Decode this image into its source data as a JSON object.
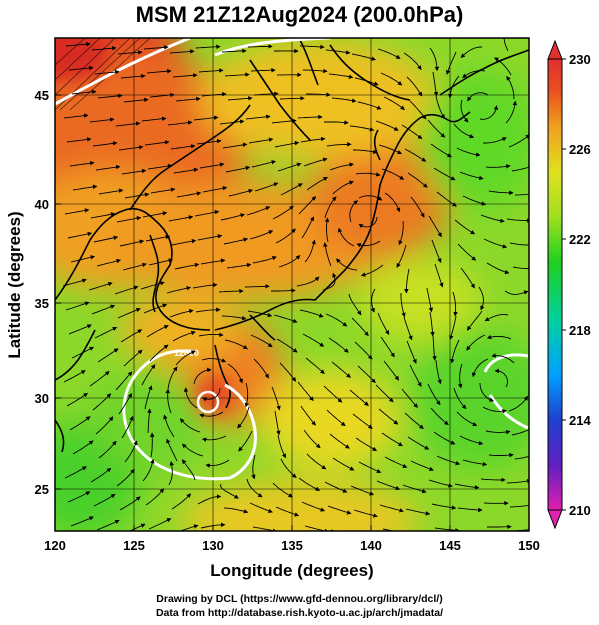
{
  "figure": {
    "title": "MSM 21Z12Aug2024 (200.0hPa)",
    "xlabel": "Longitude (degrees)",
    "ylabel": "Latitude  (degrees)",
    "x_ticks": [
      "120",
      "125",
      "130",
      "135",
      "140",
      "145",
      "150"
    ],
    "y_ticks": [
      "25",
      "30",
      "35",
      "40",
      "45"
    ],
    "colorbar_ticks": [
      "230",
      "226",
      "222",
      "218",
      "214",
      "210"
    ],
    "credit_line1": "Drawing by DCL (https://www.gfd-dennou.org/library/dcl/)",
    "credit_line2": "Data from http://database.rish.kyoto-u.ac.jp/arch/jmadata/",
    "contour_label": "12600"
  },
  "chart_data": {
    "type": "heatmap",
    "variable": "temperature-like field with wind streamlines at 200.0hPa",
    "xlim": [
      120,
      150
    ],
    "ylim": [
      22.5,
      47.5
    ],
    "colorbar_range": [
      210,
      230
    ],
    "colormap": [
      "#e020b0",
      "#2020c0",
      "#00a0ff",
      "#00d0a0",
      "#20d020",
      "#a0e020",
      "#e0e020",
      "#f0a020",
      "#e85020",
      "#e03030"
    ],
    "warm_regions": [
      {
        "lon": 121,
        "lat": 47,
        "value": 230
      },
      {
        "lon": 124,
        "lat": 44,
        "value": 228
      },
      {
        "lon": 139,
        "lat": 39,
        "value": 227
      },
      {
        "lon": 131,
        "lat": 30,
        "value": 228
      },
      {
        "lon": 127,
        "lat": 38,
        "value": 226
      }
    ],
    "cool_regions": [
      {
        "lon": 122,
        "lat": 25,
        "value": 222
      },
      {
        "lon": 147,
        "lat": 30,
        "value": 223
      },
      {
        "lon": 147,
        "lat": 44,
        "value": 224
      }
    ],
    "vortex_centers": [
      {
        "lon": 129.8,
        "lat": 29.8,
        "type": "anticyclone"
      },
      {
        "lon": 139.8,
        "lat": 38.5,
        "type": "anticyclone"
      },
      {
        "lon": 148,
        "lat": 30,
        "type": "cyclone"
      },
      {
        "lon": 147,
        "lat": 44,
        "type": "cyclone"
      }
    ],
    "grid": true
  },
  "colors": {
    "frame": "#000000",
    "contour": "#ffffff",
    "streamline": "#000000"
  }
}
